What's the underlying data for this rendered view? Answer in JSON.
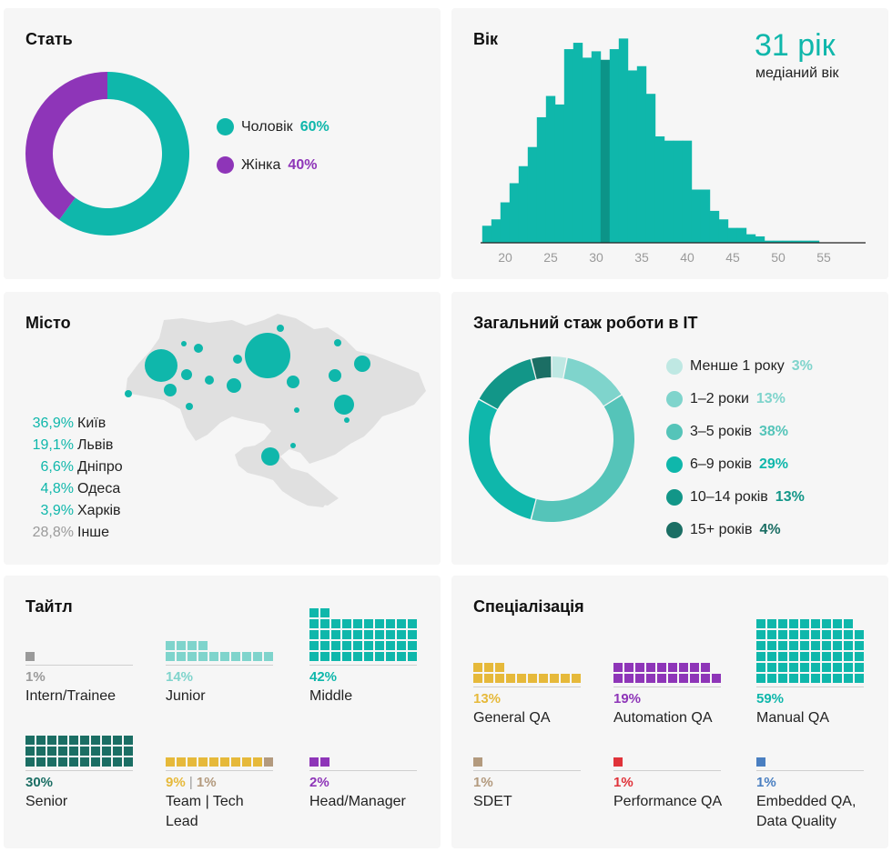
{
  "gender": {
    "title": "Стать",
    "items": [
      {
        "label": "Чоловік",
        "pct": "60%",
        "value": 60,
        "color": "#0fb7ab"
      },
      {
        "label": "Жінка",
        "pct": "40%",
        "value": 40,
        "color": "#8e35b8"
      }
    ]
  },
  "age": {
    "title": "Вік",
    "median_value": "31 рік",
    "median_caption": "медіаний вік",
    "median": 31,
    "color": "#0fb7ab",
    "median_color": "#0c9488"
  },
  "city": {
    "title": "Місто",
    "rows": [
      {
        "pct": "36,9%",
        "name": "Київ"
      },
      {
        "pct": "19,1%",
        "name": "Львів"
      },
      {
        "pct": "6,6%",
        "name": "Дніпро"
      },
      {
        "pct": "4,8%",
        "name": "Одеса"
      },
      {
        "pct": "3,9%",
        "name": "Харків"
      },
      {
        "pct": "28,8%",
        "name": "Інше"
      }
    ]
  },
  "experience": {
    "title": "Загальний стаж роботи в IT",
    "items": [
      {
        "label": "Менше 1 року",
        "pct": "3%",
        "value": 3,
        "color": "#bfe8e3"
      },
      {
        "label": "1–2 роки",
        "pct": "13%",
        "value": 13,
        "color": "#7fd4cc"
      },
      {
        "label": "3–5 років",
        "pct": "38%",
        "value": 38,
        "color": "#55c4b9"
      },
      {
        "label": "6–9 років",
        "pct": "29%",
        "value": 29,
        "color": "#0fb7ab"
      },
      {
        "label": "10–14 років",
        "pct": "13%",
        "value": 13,
        "color": "#129688"
      },
      {
        "label": "15+ років",
        "pct": "4%",
        "value": 4,
        "color": "#1b6e64"
      }
    ]
  },
  "title_block": {
    "title": "Тайтл",
    "items": [
      {
        "pct": "1%",
        "label": "Intern/Trainee"
      },
      {
        "pct": "14%",
        "label": "Junior"
      },
      {
        "pct": "42%",
        "label": "Middle"
      },
      {
        "pct": "30%",
        "label": "Senior"
      },
      {
        "pct": "9%",
        "sep": " | ",
        "pct2": "1%",
        "label": "Team | Tech Lead"
      },
      {
        "pct": "2%",
        "label": "Head/Manager"
      }
    ]
  },
  "spec": {
    "title": "Спеціалізація",
    "items": [
      {
        "pct": "13%",
        "label": "General QA"
      },
      {
        "pct": "19%",
        "label": "Automation QA"
      },
      {
        "pct": "59%",
        "label": "Manual QA"
      },
      {
        "pct": "1%",
        "label": "SDET"
      },
      {
        "pct": "1%",
        "label": "Performance QA"
      },
      {
        "pct": "1%",
        "label": "Embedded QA, Data Quality"
      }
    ]
  },
  "chart_data": [
    {
      "type": "pie",
      "title": "Стать",
      "categories": [
        "Чоловік",
        "Жінка"
      ],
      "values": [
        60,
        40
      ]
    },
    {
      "type": "bar",
      "title": "Вік",
      "x": [
        18,
        19,
        20,
        21,
        22,
        23,
        24,
        25,
        26,
        27,
        28,
        29,
        30,
        31,
        32,
        33,
        34,
        35,
        36,
        37,
        38,
        39,
        40,
        41,
        42,
        43,
        44,
        45,
        46,
        47,
        48,
        49,
        50,
        51,
        52,
        53,
        54,
        55,
        56,
        57,
        58,
        59
      ],
      "values": [
        0.8,
        1.1,
        1.9,
        2.8,
        3.6,
        4.5,
        5.9,
        6.9,
        6.5,
        9.1,
        9.4,
        8.7,
        9.0,
        8.6,
        9.1,
        9.6,
        8.1,
        8.3,
        7.0,
        5.0,
        4.8,
        4.8,
        4.8,
        2.5,
        2.5,
        1.5,
        1.1,
        0.7,
        0.7,
        0.4,
        0.3,
        0.1,
        0.1,
        0.1,
        0.1,
        0.1,
        0.1,
        0,
        0,
        0,
        0,
        0
      ],
      "highlight": [
        31
      ],
      "xticks": [
        20,
        25,
        30,
        35,
        40,
        45,
        50,
        55
      ]
    },
    {
      "type": "pie",
      "title": "Загальний стаж роботи в IT",
      "categories": [
        "Менше 1 року",
        "1–2 роки",
        "3–5 років",
        "6–9 років",
        "10–14 років",
        "15+ років"
      ],
      "values": [
        3,
        13,
        38,
        29,
        13,
        4
      ]
    },
    {
      "type": "bar",
      "title": "Тайтл",
      "categories": [
        "Intern/Trainee",
        "Junior",
        "Middle",
        "Senior",
        "Team Lead",
        "Tech Lead",
        "Head/Manager"
      ],
      "values": [
        1,
        14,
        42,
        30,
        9,
        1,
        2
      ]
    },
    {
      "type": "bar",
      "title": "Спеціалізація",
      "categories": [
        "General QA",
        "Automation QA",
        "Manual QA",
        "SDET",
        "Performance QA",
        "Embedded QA, Data Quality"
      ],
      "values": [
        13,
        19,
        59,
        1,
        1,
        1
      ]
    }
  ]
}
